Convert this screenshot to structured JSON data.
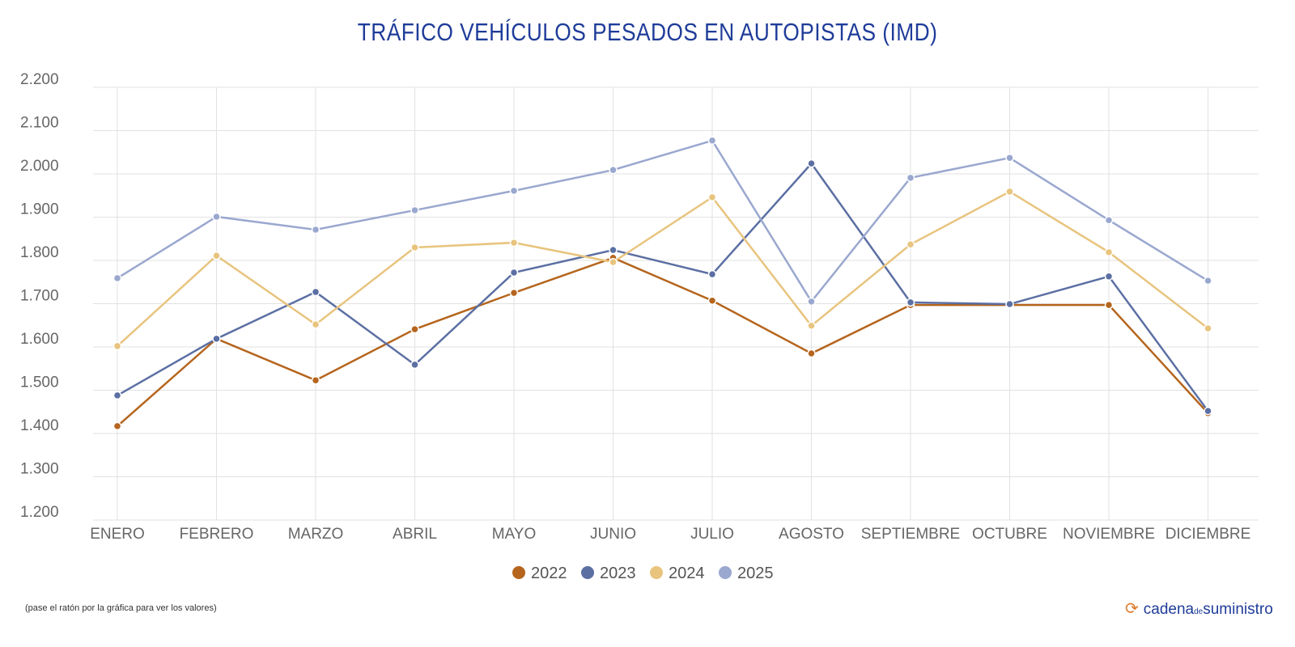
{
  "chart_data": {
    "type": "line",
    "title": "TRÁFICO VEHÍCULOS PESADOS EN AUTOPISTAS (IMD)",
    "categories": [
      "ENERO",
      "FEBRERO",
      "MARZO",
      "ABRIL",
      "MAYO",
      "JUNIO",
      "JULIO",
      "AGOSTO",
      "SEPTIEMBRE",
      "OCTUBRE",
      "NOVIEMBRE",
      "DICIEMBRE"
    ],
    "ylim": [
      1200,
      2200
    ],
    "yticks": [
      "1.200",
      "1.300",
      "1.400",
      "1.500",
      "1.600",
      "1.700",
      "1.800",
      "1.900",
      "2.000",
      "2.100",
      "2.200"
    ],
    "grid": true,
    "legend": "bottom",
    "series": [
      {
        "name": "2022",
        "color": "#b5651d",
        "values": [
          1417,
          1619,
          1523,
          1641,
          1725,
          1806,
          1707,
          1585,
          1697,
          1697,
          1697,
          1447
        ]
      },
      {
        "name": "2023",
        "color": "#5b6fa3",
        "values": [
          1488,
          1619,
          1727,
          1559,
          1772,
          1824,
          1768,
          2024,
          1703,
          1699,
          1763,
          1452
        ]
      },
      {
        "name": "2024",
        "color": "#e8c47e",
        "values": [
          1602,
          1811,
          1652,
          1830,
          1841,
          1796,
          1946,
          1649,
          1837,
          1959,
          1819,
          1643
        ]
      },
      {
        "name": "2025",
        "color": "#9aa8cf",
        "values": [
          1759,
          1901,
          1871,
          1916,
          1961,
          2009,
          2077,
          1705,
          1991,
          2037,
          1893,
          1753
        ]
      }
    ]
  },
  "note": "(pase el ratón por la gráfica para ver los valores)",
  "logo": {
    "part1": "cadena",
    "part2": "de",
    "part3": "suministro"
  }
}
